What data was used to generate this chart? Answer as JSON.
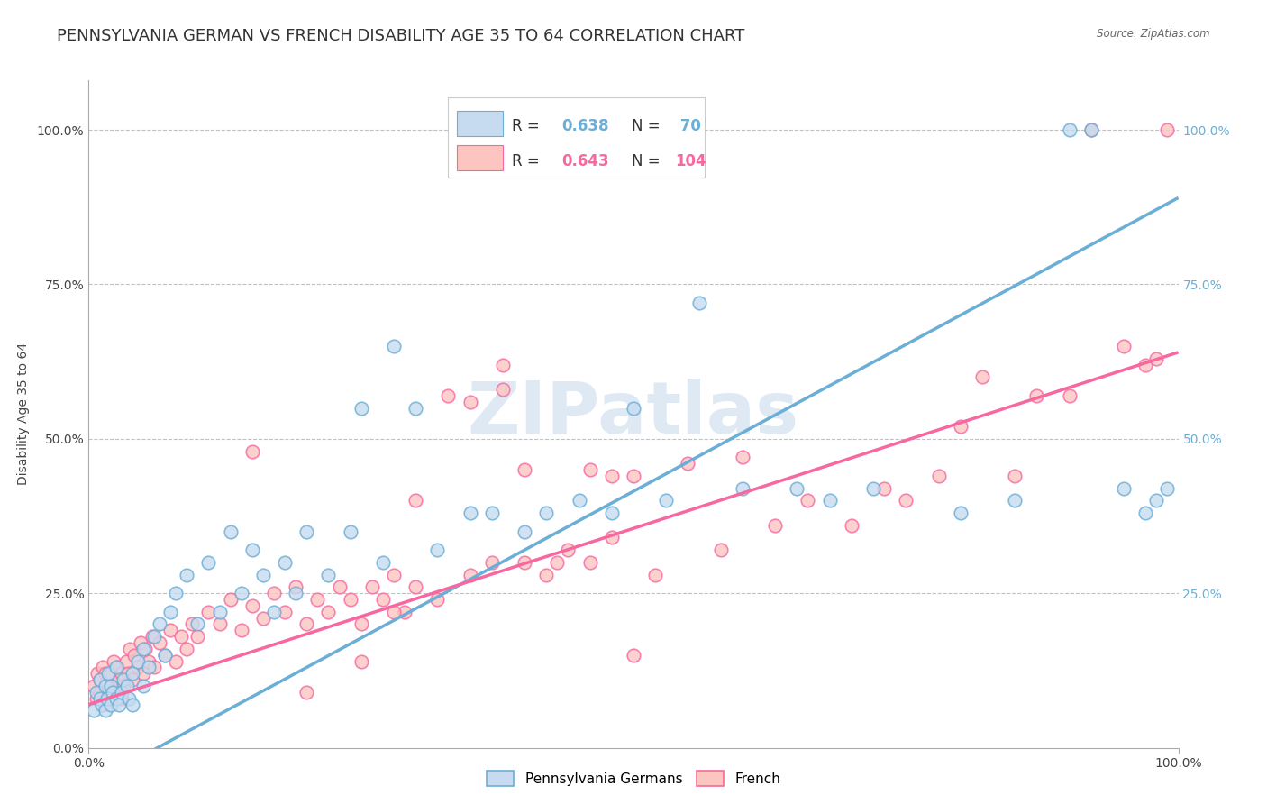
{
  "title": "PENNSYLVANIA GERMAN VS FRENCH DISABILITY AGE 35 TO 64 CORRELATION CHART",
  "source": "Source: ZipAtlas.com",
  "ylabel": "Disability Age 35 to 64",
  "y_ticks_left": [
    "0.0%",
    "25.0%",
    "50.0%",
    "75.0%",
    "100.0%"
  ],
  "y_ticks_right": [
    "25.0%",
    "50.0%",
    "75.0%",
    "100.0%"
  ],
  "y_tick_vals_left": [
    0.0,
    0.25,
    0.5,
    0.75,
    1.0
  ],
  "y_tick_vals_right": [
    0.25,
    0.5,
    0.75,
    1.0
  ],
  "x_range": [
    0,
    1
  ],
  "y_range": [
    0.0,
    1.08
  ],
  "blue_color": "#6baed6",
  "blue_fill": "#c6dbef",
  "pink_color": "#f768a1",
  "pink_fill": "#fcc5c0",
  "R_blue": "0.638",
  "N_blue": "70",
  "R_pink": "0.643",
  "N_pink": "104",
  "blue_line_intercept": -0.06,
  "blue_line_slope": 0.95,
  "pink_line_intercept": 0.07,
  "pink_line_slope": 0.57,
  "blue_scatter_x": [
    0.005,
    0.007,
    0.01,
    0.01,
    0.012,
    0.015,
    0.015,
    0.017,
    0.018,
    0.02,
    0.02,
    0.022,
    0.025,
    0.025,
    0.028,
    0.03,
    0.032,
    0.035,
    0.037,
    0.04,
    0.04,
    0.045,
    0.05,
    0.05,
    0.055,
    0.06,
    0.065,
    0.07,
    0.075,
    0.08,
    0.09,
    0.1,
    0.11,
    0.12,
    0.13,
    0.14,
    0.15,
    0.16,
    0.17,
    0.18,
    0.19,
    0.2,
    0.22,
    0.24,
    0.25,
    0.27,
    0.28,
    0.3,
    0.32,
    0.35,
    0.37,
    0.4,
    0.42,
    0.45,
    0.48,
    0.5,
    0.53,
    0.56,
    0.6,
    0.65,
    0.68,
    0.72,
    0.8,
    0.85,
    0.9,
    0.92,
    0.95,
    0.97,
    0.98,
    0.99
  ],
  "blue_scatter_y": [
    0.06,
    0.09,
    0.08,
    0.11,
    0.07,
    0.06,
    0.1,
    0.08,
    0.12,
    0.07,
    0.1,
    0.09,
    0.08,
    0.13,
    0.07,
    0.09,
    0.11,
    0.1,
    0.08,
    0.07,
    0.12,
    0.14,
    0.1,
    0.16,
    0.13,
    0.18,
    0.2,
    0.15,
    0.22,
    0.25,
    0.28,
    0.2,
    0.3,
    0.22,
    0.35,
    0.25,
    0.32,
    0.28,
    0.22,
    0.3,
    0.25,
    0.35,
    0.28,
    0.35,
    0.55,
    0.3,
    0.65,
    0.55,
    0.32,
    0.38,
    0.38,
    0.35,
    0.38,
    0.4,
    0.38,
    0.55,
    0.4,
    0.72,
    0.42,
    0.42,
    0.4,
    0.42,
    0.38,
    0.4,
    1.0,
    1.0,
    0.42,
    0.38,
    0.4,
    0.42
  ],
  "pink_scatter_x": [
    0.005,
    0.007,
    0.008,
    0.01,
    0.01,
    0.012,
    0.013,
    0.015,
    0.015,
    0.017,
    0.018,
    0.02,
    0.02,
    0.022,
    0.023,
    0.025,
    0.026,
    0.028,
    0.03,
    0.03,
    0.032,
    0.034,
    0.036,
    0.038,
    0.04,
    0.042,
    0.045,
    0.048,
    0.05,
    0.052,
    0.055,
    0.058,
    0.06,
    0.065,
    0.07,
    0.075,
    0.08,
    0.085,
    0.09,
    0.095,
    0.1,
    0.11,
    0.12,
    0.13,
    0.14,
    0.15,
    0.16,
    0.17,
    0.18,
    0.19,
    0.2,
    0.21,
    0.22,
    0.23,
    0.24,
    0.25,
    0.26,
    0.27,
    0.28,
    0.29,
    0.3,
    0.32,
    0.33,
    0.35,
    0.37,
    0.38,
    0.4,
    0.42,
    0.44,
    0.46,
    0.48,
    0.5,
    0.52,
    0.55,
    0.58,
    0.6,
    0.63,
    0.66,
    0.7,
    0.73,
    0.75,
    0.78,
    0.8,
    0.82,
    0.85,
    0.87,
    0.9,
    0.92,
    0.95,
    0.97,
    0.98,
    0.99,
    0.15,
    0.25,
    0.3,
    0.35,
    0.4,
    0.43,
    0.46,
    0.5,
    0.2,
    0.28,
    0.38,
    0.48
  ],
  "pink_scatter_y": [
    0.1,
    0.08,
    0.12,
    0.09,
    0.11,
    0.07,
    0.13,
    0.08,
    0.12,
    0.1,
    0.09,
    0.08,
    0.12,
    0.1,
    0.14,
    0.09,
    0.13,
    0.11,
    0.08,
    0.12,
    0.1,
    0.14,
    0.12,
    0.16,
    0.11,
    0.15,
    0.13,
    0.17,
    0.12,
    0.16,
    0.14,
    0.18,
    0.13,
    0.17,
    0.15,
    0.19,
    0.14,
    0.18,
    0.16,
    0.2,
    0.18,
    0.22,
    0.2,
    0.24,
    0.19,
    0.23,
    0.21,
    0.25,
    0.22,
    0.26,
    0.2,
    0.24,
    0.22,
    0.26,
    0.24,
    0.2,
    0.26,
    0.24,
    0.28,
    0.22,
    0.26,
    0.24,
    0.57,
    0.28,
    0.3,
    0.58,
    0.3,
    0.28,
    0.32,
    0.3,
    0.34,
    0.15,
    0.28,
    0.46,
    0.32,
    0.47,
    0.36,
    0.4,
    0.36,
    0.42,
    0.4,
    0.44,
    0.52,
    0.6,
    0.44,
    0.57,
    0.57,
    1.0,
    0.65,
    0.62,
    0.63,
    1.0,
    0.48,
    0.14,
    0.4,
    0.56,
    0.45,
    0.3,
    0.45,
    0.44,
    0.09,
    0.22,
    0.62,
    0.44
  ],
  "legend_items": [
    "Pennsylvania Germans",
    "French"
  ],
  "grid_color": "#bbbbbb",
  "title_fontsize": 13,
  "label_fontsize": 10,
  "tick_fontsize": 10
}
